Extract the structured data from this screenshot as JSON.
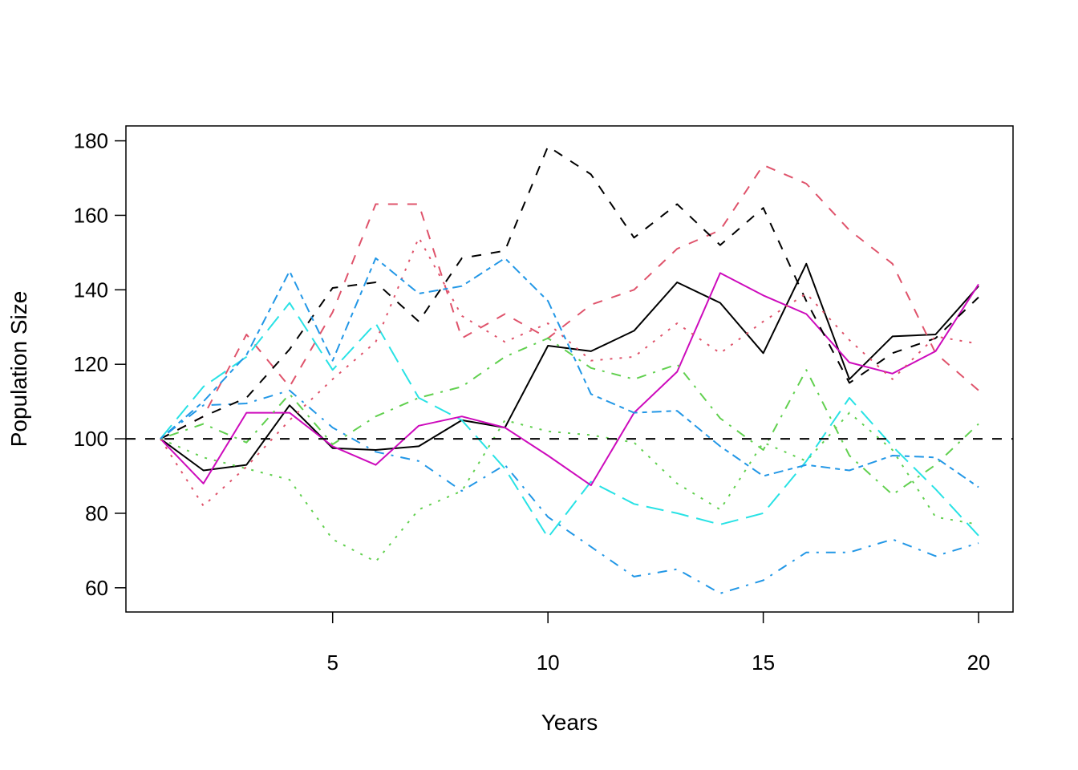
{
  "chart_data": {
    "type": "line",
    "title": "",
    "xlabel": "Years",
    "ylabel": "Population Size",
    "xlim": [
      0.2,
      20.8
    ],
    "ylim": [
      53.5,
      184
    ],
    "x_ticks": [
      5,
      10,
      15,
      20
    ],
    "y_ticks": [
      60,
      80,
      100,
      120,
      140,
      160,
      180
    ],
    "grid": false,
    "legend": "none",
    "reference_line": {
      "y": 100,
      "style": "dashed",
      "color": "#000000"
    },
    "x": [
      1,
      2,
      3,
      4,
      5,
      6,
      7,
      8,
      9,
      10,
      11,
      12,
      13,
      14,
      15,
      16,
      17,
      18,
      19,
      20
    ],
    "series": [
      {
        "color": "#000000",
        "dash": "solid",
        "values": [
          100,
          91.5,
          93,
          109,
          97.5,
          97,
          98,
          105,
          103,
          125,
          123.5,
          129,
          142,
          136.5,
          123,
          147,
          116,
          127.5,
          128,
          141
        ]
      },
      {
        "color": "#DF536B",
        "dash": "dashed",
        "values": [
          100,
          106,
          128,
          114,
          134,
          163,
          163,
          127,
          133.5,
          127,
          136,
          140,
          151,
          156,
          173.5,
          168.5,
          156,
          147,
          123,
          113
        ]
      },
      {
        "color": "#61D04F",
        "dash": "dotted",
        "values": [
          100,
          95,
          92,
          89,
          73,
          67,
          81,
          86,
          105,
          102,
          101,
          99,
          88,
          81,
          99,
          94,
          107,
          97,
          79,
          77
        ]
      },
      {
        "color": "#2297E6",
        "dash": "dotdash",
        "values": [
          100,
          109,
          109.5,
          113,
          103,
          96.5,
          94,
          86,
          93,
          79,
          71,
          63,
          65,
          58.5,
          62,
          69.5,
          69.5,
          73,
          68.5,
          72
        ]
      },
      {
        "color": "#28E2E5",
        "dash": "longdash",
        "values": [
          100,
          114,
          122,
          136.5,
          118.5,
          131,
          111,
          105,
          92,
          73.5,
          88.5,
          82.5,
          80,
          77,
          80,
          94,
          111,
          98,
          86.5,
          74
        ]
      },
      {
        "color": "#CD0BBC",
        "dash": "solid",
        "values": [
          100,
          88,
          107,
          107,
          98,
          93,
          103.5,
          106,
          103,
          95.5,
          87.5,
          107,
          118,
          144.5,
          138.5,
          133.5,
          120.5,
          117.5,
          123.5,
          141.5
        ]
      },
      {
        "color": "#000000",
        "dash": "dashed",
        "values": [
          100,
          106,
          111,
          124,
          140.5,
          142,
          131.5,
          148.5,
          150.5,
          178.5,
          171,
          154,
          163,
          152,
          162,
          137,
          115,
          123,
          127,
          138
        ]
      },
      {
        "color": "#DF536B",
        "dash": "dotted",
        "values": [
          100,
          82,
          92.5,
          105,
          116,
          126,
          154,
          133,
          126,
          131,
          121,
          122,
          131,
          123,
          131.5,
          139,
          126.5,
          116,
          127.5,
          125.5
        ]
      },
      {
        "color": "#61D04F",
        "dash": "dotdash",
        "values": [
          100,
          104,
          99,
          112,
          98.5,
          106,
          111,
          114,
          122,
          127,
          119,
          116,
          120,
          105.5,
          97,
          118.5,
          95.5,
          85,
          93,
          104
        ]
      },
      {
        "color": "#2297E6",
        "dash": "dashed2",
        "values": [
          100,
          110,
          122.5,
          145,
          121,
          148.5,
          139,
          141,
          148.5,
          137,
          112,
          107,
          107.5,
          98,
          90,
          93,
          91.5,
          95.5,
          95,
          87
        ]
      }
    ]
  }
}
